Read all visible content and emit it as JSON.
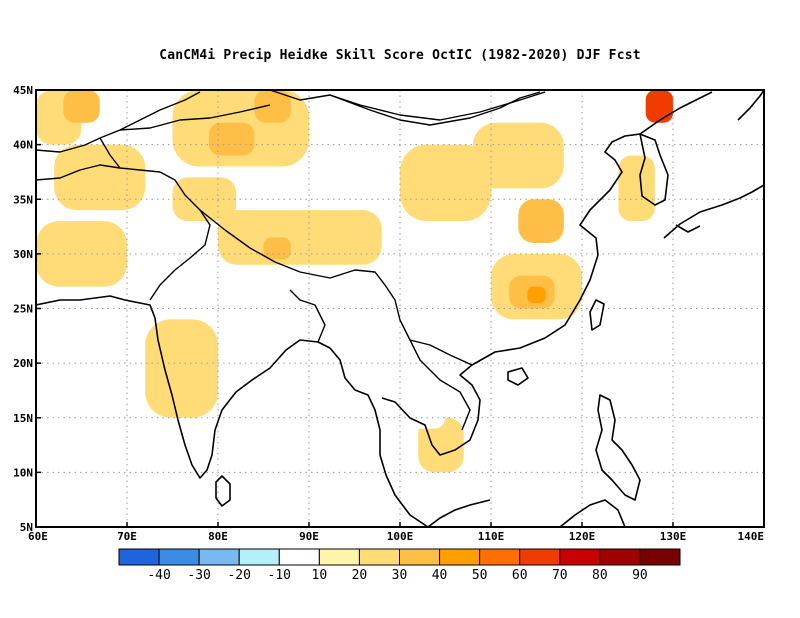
{
  "title": "CanCM4i Precip Heidke Skill Score OctIC (1982-2020) DJF Fcst",
  "axes": {
    "lon_labels": [
      "60E",
      "70E",
      "80E",
      "90E",
      "100E",
      "110E",
      "120E",
      "130E",
      "140E"
    ],
    "lat_labels": [
      "5N",
      "10N",
      "15N",
      "20N",
      "25N",
      "30N",
      "35N",
      "40N",
      "45N"
    ],
    "lon_range": [
      60,
      140
    ],
    "lat_range": [
      5,
      45
    ],
    "grid": "dotted"
  },
  "colorbar": {
    "labels": [
      "-40",
      "-30",
      "-20",
      "-10",
      "10",
      "20",
      "30",
      "40",
      "50",
      "60",
      "70",
      "80",
      "90"
    ],
    "colors": [
      "#1e64dc",
      "#3c8ce6",
      "#78b9f0",
      "#b4f0fa",
      "#ffffff",
      "#fff5aa",
      "#ffdc78",
      "#ffbe46",
      "#ffa000",
      "#ff6e00",
      "#f03c00",
      "#c80000",
      "#a00000",
      "#780000"
    ]
  },
  "chart_data": {
    "type": "heatmap",
    "title": "CanCM4i Precip Heidke Skill Score OctIC (1982-2020) DJF Fcst",
    "xlabel": "",
    "ylabel": "",
    "xlim": [
      60,
      140
    ],
    "ylim": [
      5,
      45
    ],
    "levels": [
      -40,
      -30,
      -20,
      -10,
      10,
      20,
      30,
      40,
      50,
      60,
      70,
      80,
      90
    ],
    "regions": [
      {
        "lon": [
          60,
          65
        ],
        "lat": [
          40,
          45
        ],
        "value": 20
      },
      {
        "lon": [
          63,
          67
        ],
        "lat": [
          42,
          45
        ],
        "value": 30
      },
      {
        "lon": [
          75,
          90
        ],
        "lat": [
          38,
          45
        ],
        "value": 20
      },
      {
        "lon": [
          79,
          84
        ],
        "lat": [
          39,
          42
        ],
        "value": 30
      },
      {
        "lon": [
          84,
          88
        ],
        "lat": [
          42,
          45
        ],
        "value": 30
      },
      {
        "lon": [
          62,
          72
        ],
        "lat": [
          34,
          40
        ],
        "value": 20
      },
      {
        "lon": [
          60,
          70
        ],
        "lat": [
          27,
          33
        ],
        "value": 20
      },
      {
        "lon": [
          75,
          82
        ],
        "lat": [
          33,
          37
        ],
        "value": 20
      },
      {
        "lon": [
          80,
          98
        ],
        "lat": [
          29,
          34
        ],
        "value": 20
      },
      {
        "lon": [
          85,
          88
        ],
        "lat": [
          29.5,
          31.5
        ],
        "value": 30
      },
      {
        "lon": [
          100,
          106
        ],
        "lat": [
          35,
          38
        ],
        "value": 30
      },
      {
        "lon": [
          100,
          110
        ],
        "lat": [
          33,
          40
        ],
        "value": 20
      },
      {
        "lon": [
          108,
          118
        ],
        "lat": [
          36,
          42
        ],
        "value": 20
      },
      {
        "lon": [
          113,
          118
        ],
        "lat": [
          31,
          35
        ],
        "value": 30
      },
      {
        "lon": [
          110,
          120
        ],
        "lat": [
          24,
          30
        ],
        "value": 20
      },
      {
        "lon": [
          112,
          117
        ],
        "lat": [
          25,
          28
        ],
        "value": 30
      },
      {
        "lon": [
          114,
          116
        ],
        "lat": [
          25.5,
          27
        ],
        "value": 40
      },
      {
        "lon": [
          72,
          80
        ],
        "lat": [
          15,
          24
        ],
        "value": 20
      },
      {
        "lon": [
          102,
          107
        ],
        "lat": [
          10,
          15
        ],
        "value": 20
      },
      {
        "lon": [
          124,
          128
        ],
        "lat": [
          33,
          39
        ],
        "value": 20
      },
      {
        "lon": [
          95,
          98
        ],
        "lat": [
          43,
          45
        ],
        "value": -10
      },
      {
        "lon": [
          101,
          104
        ],
        "lat": [
          27,
          30
        ],
        "value": -10
      },
      {
        "lon": [
          106,
          108
        ],
        "lat": [
          23,
          26
        ],
        "value": -10
      },
      {
        "lon": [
          98,
          105
        ],
        "lat": [
          14,
          17
        ],
        "value": -10
      },
      {
        "lon": [
          127,
          130
        ],
        "lat": [
          42,
          45
        ],
        "value": 60
      }
    ]
  }
}
